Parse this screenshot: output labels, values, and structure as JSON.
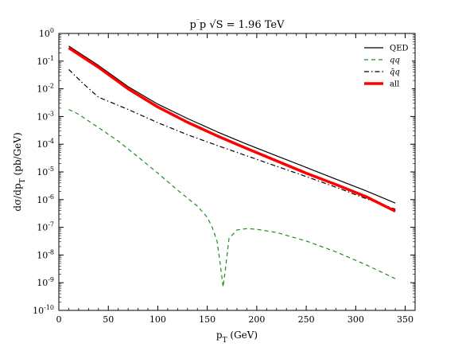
{
  "chart_data": {
    "type": "line",
    "title": "p p̄ √S = 1.96 TeV",
    "xlabel": "p_T (GeV)",
    "ylabel": "dσ/dp_T (pb/GeV)",
    "xlim": [
      0,
      360
    ],
    "ylim": [
      1e-10,
      1
    ],
    "yscale": "log",
    "x_ticks": [
      0,
      50,
      100,
      150,
      200,
      250,
      300,
      350
    ],
    "y_ticks": [
      1e-10,
      1e-09,
      1e-08,
      1e-07,
      1e-06,
      1e-05,
      0.0001,
      0.001,
      0.01,
      0.1,
      1
    ],
    "legend_position": "top-right",
    "grid": false,
    "series": [
      {
        "name": "QED",
        "color": "#000000",
        "style": "solid",
        "x": [
          10,
          40,
          70,
          100,
          130,
          160,
          190,
          220,
          250,
          280,
          310,
          340
        ],
        "y": [
          0.35,
          0.07,
          0.012,
          0.0028,
          0.00085,
          0.00028,
          0.0001,
          3.8e-05,
          1.45e-05,
          5.5e-06,
          2.1e-06,
          7.5e-07
        ]
      },
      {
        "name": "qq",
        "color": "#228b22",
        "style": "dashed",
        "x": [
          10,
          20,
          40,
          60,
          80,
          100,
          120,
          140,
          150,
          155,
          160,
          163,
          166,
          168,
          172,
          180,
          190,
          200,
          220,
          250,
          280,
          310,
          340
        ],
        "y": [
          0.0018,
          0.0012,
          0.0004,
          0.00013,
          3.5e-05,
          9e-06,
          2.2e-06,
          5.8e-07,
          2.3e-07,
          1e-07,
          3e-08,
          5e-09,
          7e-10,
          2.5e-09,
          4e-08,
          8e-08,
          9e-08,
          8.5e-08,
          6.5e-08,
          3.2e-08,
          1.3e-08,
          4.5e-09,
          1.4e-09
        ]
      },
      {
        "name": "q̄q",
        "color": "#000000",
        "style": "dashdot",
        "x": [
          10,
          25,
          40,
          70,
          100,
          130,
          160,
          190,
          220,
          250,
          280,
          310,
          340
        ],
        "y": [
          0.05,
          0.015,
          0.005,
          0.0018,
          0.0006,
          0.00022,
          9e-05,
          3.8e-05,
          1.6e-05,
          6.8e-06,
          2.8e-06,
          1.1e-06,
          4.5e-07
        ]
      },
      {
        "name": "all",
        "color": "#ff0000",
        "style": "solid-thick",
        "x": [
          10,
          40,
          70,
          100,
          130,
          160,
          190,
          220,
          250,
          280,
          310,
          340
        ],
        "y": [
          0.3,
          0.06,
          0.01,
          0.0022,
          0.00062,
          0.0002,
          7e-05,
          2.5e-05,
          9e-06,
          3.5e-06,
          1.3e-06,
          3.8e-07
        ]
      }
    ]
  }
}
